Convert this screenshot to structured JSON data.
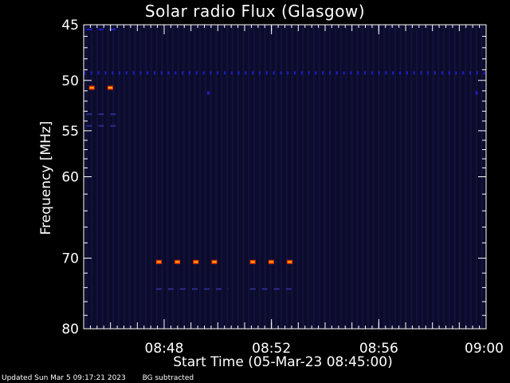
{
  "chart_data": {
    "type": "heatmap",
    "title": "Solar radio Flux (Glasgow)",
    "xlabel": "Start Time (05-Mar-23 08:45:00)",
    "ylabel": "Frequency [MHz]",
    "x_range_minutes": [
      0,
      15
    ],
    "x_ticks": [
      {
        "minute": 3,
        "label": "08:48"
      },
      {
        "minute": 7,
        "label": "08:52"
      },
      {
        "minute": 11,
        "label": "08:56"
      },
      {
        "minute": 15,
        "label": "09:00"
      }
    ],
    "y_range_mhz": [
      45,
      80
    ],
    "y_scale": "log",
    "y_ticks": [
      45,
      50,
      55,
      60,
      70,
      80
    ],
    "background_color": "#0b0b2a",
    "colors": {
      "low": "#1e1ec8",
      "mid": "#2a2a8c",
      "high_edge": "#ff3000",
      "high_core": "#ffd000"
    },
    "features": [
      {
        "freq_mhz": 45.4,
        "t_start": 0.1,
        "t_end": 1.4,
        "intensity": "low",
        "style": "dashed"
      },
      {
        "freq_mhz": 49.3,
        "t_start": 0.0,
        "t_end": 15.0,
        "intensity": "low",
        "style": "dotted"
      },
      {
        "freq_mhz": 50.7,
        "t_start": 0.2,
        "t_end": 1.4,
        "intensity": "high",
        "style": "dashed"
      },
      {
        "freq_mhz": 51.2,
        "t_start": 4.6,
        "t_end": 4.8,
        "intensity": "low",
        "style": "dot"
      },
      {
        "freq_mhz": 51.2,
        "t_start": 14.6,
        "t_end": 14.8,
        "intensity": "low",
        "style": "dot"
      },
      {
        "freq_mhz": 53.3,
        "t_start": 0.1,
        "t_end": 1.4,
        "intensity": "mid",
        "style": "dashed"
      },
      {
        "freq_mhz": 54.5,
        "t_start": 0.1,
        "t_end": 1.4,
        "intensity": "mid",
        "style": "dashed"
      },
      {
        "freq_mhz": 70.5,
        "t_start": 2.7,
        "t_end": 5.4,
        "intensity": "high",
        "style": "dashed"
      },
      {
        "freq_mhz": 70.5,
        "t_start": 6.2,
        "t_end": 7.8,
        "intensity": "high",
        "style": "dashed"
      },
      {
        "freq_mhz": 74.2,
        "t_start": 2.7,
        "t_end": 5.4,
        "intensity": "mid",
        "style": "dashed"
      },
      {
        "freq_mhz": 74.2,
        "t_start": 6.2,
        "t_end": 7.8,
        "intensity": "mid",
        "style": "dashed"
      }
    ]
  },
  "footer": {
    "updated": "Updated Sun Mar  5 09:17:21 2023",
    "note": "BG subtracted"
  }
}
